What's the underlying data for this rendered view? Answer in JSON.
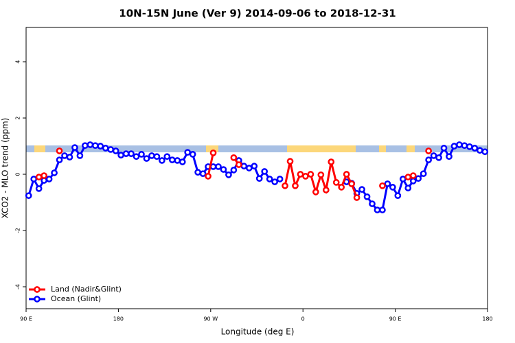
{
  "chart_data": {
    "type": "line",
    "title": "10N-15N June (Ver 9)   2014-09-06 to 2018-12-31",
    "x_label": "Longitude (deg E)",
    "y_label": "XCO2 - MLO trend (ppm)",
    "x": [
      92.5,
      97.5,
      102.5,
      107.5,
      112.5,
      117.5,
      122.5,
      127.5,
      132.5,
      137.5,
      142.5,
      147.5,
      152.5,
      157.5,
      162.5,
      167.5,
      172.5,
      177.5,
      182.5,
      187.5,
      192.5,
      197.5,
      202.5,
      207.5,
      212.5,
      217.5,
      222.5,
      227.5,
      232.5,
      237.5,
      242.5,
      247.5,
      252.5,
      257.5,
      262.5,
      267.5,
      272.5,
      277.5,
      282.5,
      287.5,
      292.5,
      297.5,
      302.5,
      307.5,
      312.5,
      317.5,
      322.5,
      327.5,
      332.5,
      337.5,
      342.5,
      347.5,
      352.5,
      357.5,
      362.5,
      367.5,
      372.5,
      377.5,
      382.5,
      387.5,
      392.5,
      397.5,
      402.5,
      407.5,
      412.5,
      417.5,
      422.5,
      427.5,
      432.5,
      437.5,
      442.5,
      447.5,
      452.5,
      457.5,
      462.5,
      467.5,
      472.5,
      477.5,
      482.5,
      487.5,
      492.5,
      497.5,
      502.5,
      507.5,
      512.5,
      517.5,
      522.5,
      527.5,
      532.5,
      537.5
    ],
    "series": [
      {
        "name": "Ocean (Glint)",
        "color": "#0000ff",
        "values": [
          -0.76,
          -0.17,
          -0.51,
          -0.22,
          -0.17,
          0.05,
          0.51,
          0.66,
          0.61,
          0.95,
          0.66,
          1.02,
          1.05,
          1.02,
          1.0,
          0.93,
          0.88,
          0.83,
          0.68,
          0.73,
          0.73,
          0.63,
          0.71,
          0.56,
          0.66,
          0.63,
          0.49,
          0.63,
          0.51,
          0.49,
          0.44,
          0.78,
          0.71,
          0.07,
          0.02,
          0.27,
          0.27,
          0.27,
          0.17,
          -0.02,
          0.15,
          0.49,
          0.29,
          0.22,
          0.29,
          -0.15,
          0.1,
          -0.17,
          -0.27,
          -0.17,
          null,
          null,
          null,
          null,
          null,
          null,
          null,
          null,
          null,
          null,
          null,
          null,
          -0.27,
          -0.32,
          -0.68,
          -0.54,
          -0.8,
          -1.05,
          -1.27,
          -1.27,
          -0.34,
          -0.46,
          -0.76,
          -0.17,
          -0.49,
          -0.24,
          -0.15,
          0.02,
          0.51,
          0.66,
          0.59,
          0.93,
          0.63,
          1.0,
          1.05,
          1.02,
          0.98,
          0.93,
          0.85,
          0.8
        ]
      },
      {
        "name": "Land (Nadir&Glint)",
        "color": "#ff0000",
        "values": [
          null,
          null,
          -0.1,
          -0.05,
          null,
          null,
          0.83,
          null,
          null,
          null,
          null,
          null,
          null,
          null,
          null,
          null,
          null,
          null,
          null,
          null,
          null,
          null,
          null,
          null,
          null,
          null,
          null,
          null,
          null,
          null,
          null,
          null,
          null,
          null,
          null,
          -0.07,
          0.76,
          null,
          null,
          null,
          0.59,
          0.34,
          null,
          null,
          null,
          null,
          null,
          null,
          null,
          null,
          -0.41,
          0.46,
          -0.41,
          0,
          -0.07,
          0,
          -0.63,
          -0.02,
          -0.56,
          0.44,
          -0.29,
          -0.46,
          0,
          -0.34,
          -0.83,
          null,
          null,
          null,
          null,
          -0.41,
          null,
          null,
          null,
          null,
          -0.1,
          -0.05,
          null,
          null,
          0.83,
          null,
          null,
          null,
          null,
          null,
          null,
          null,
          null,
          null,
          null,
          null
        ]
      }
    ],
    "xlim": [
      90,
      540
    ],
    "xticks": [
      {
        "value": 90,
        "label": "90 E"
      },
      180,
      {
        "value": 270,
        "label": "90 W"
      },
      {
        "value": 360,
        "label": "0"
      },
      {
        "value": 450,
        "label": "90 E"
      },
      {
        "value": 540,
        "label": "180"
      }
    ],
    "ylim": [
      -4.78,
      5.22
    ],
    "yticks": [
      -4,
      -2,
      0,
      2,
      4
    ],
    "legend": "bottom-left"
  }
}
